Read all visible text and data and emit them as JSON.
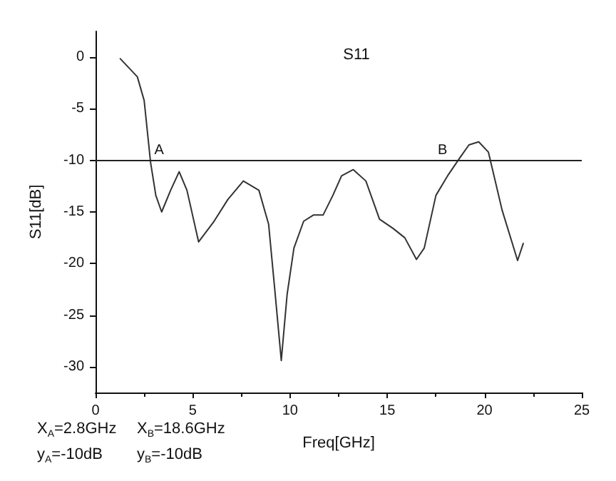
{
  "chart_data": {
    "type": "line",
    "title": "S11",
    "xlabel": "Freq[GHz]",
    "ylabel": "S11[dB]",
    "x": [
      1.25,
      2.15,
      2.5,
      2.83,
      3.1,
      3.4,
      3.86,
      4.3,
      4.7,
      5.3,
      6.06,
      6.8,
      7.6,
      8.4,
      8.9,
      9.2,
      9.55,
      9.85,
      10.2,
      10.7,
      11.2,
      11.7,
      12.2,
      12.65,
      13.25,
      13.9,
      14.6,
      15.3,
      15.9,
      16.5,
      16.9,
      17.5,
      18.1,
      18.75,
      19.2,
      19.7,
      20.2,
      20.9,
      21.7,
      22.0
    ],
    "series": [
      {
        "color": "#333333",
        "values": [
          -0.1,
          -1.9,
          -4.2,
          -10.2,
          -13.4,
          -15,
          -12.9,
          -11.1,
          -12.9,
          -17.9,
          -16,
          -13.8,
          -12,
          -12.9,
          -16.2,
          -22.2,
          -29.4,
          -23,
          -18.5,
          -15.9,
          -15.3,
          -15.3,
          -13.4,
          -11.5,
          -10.9,
          -12,
          -15.7,
          -16.6,
          -17.5,
          -19.6,
          -18.5,
          -13.4,
          -11.5,
          -9.7,
          -8.5,
          -8.2,
          -9.2,
          -14.8,
          -19.7,
          -18
        ]
      }
    ],
    "xlim": [
      0,
      25
    ],
    "xticks": [
      0,
      5,
      10,
      15,
      20,
      25
    ],
    "ylim": [
      -32.5,
      2.5
    ],
    "yticks": [
      -30,
      -25,
      -20,
      -15,
      -10,
      -5,
      0
    ],
    "ref_lines": [
      {
        "axis": "y",
        "value": -10,
        "color": "#222222"
      }
    ],
    "annotations": [
      {
        "text": "A",
        "x": 2.8,
        "y": -10
      },
      {
        "text": "B",
        "x": 18.6,
        "y": -10
      },
      "X$_{A}$=2.8GHz",
      "X$_{B}$=18.6GHz",
      "y$_{A}$=-10dB",
      "y$_{B}$=-10dB"
    ],
    "grid": false,
    "marker": "none",
    "line_style": "solid"
  }
}
